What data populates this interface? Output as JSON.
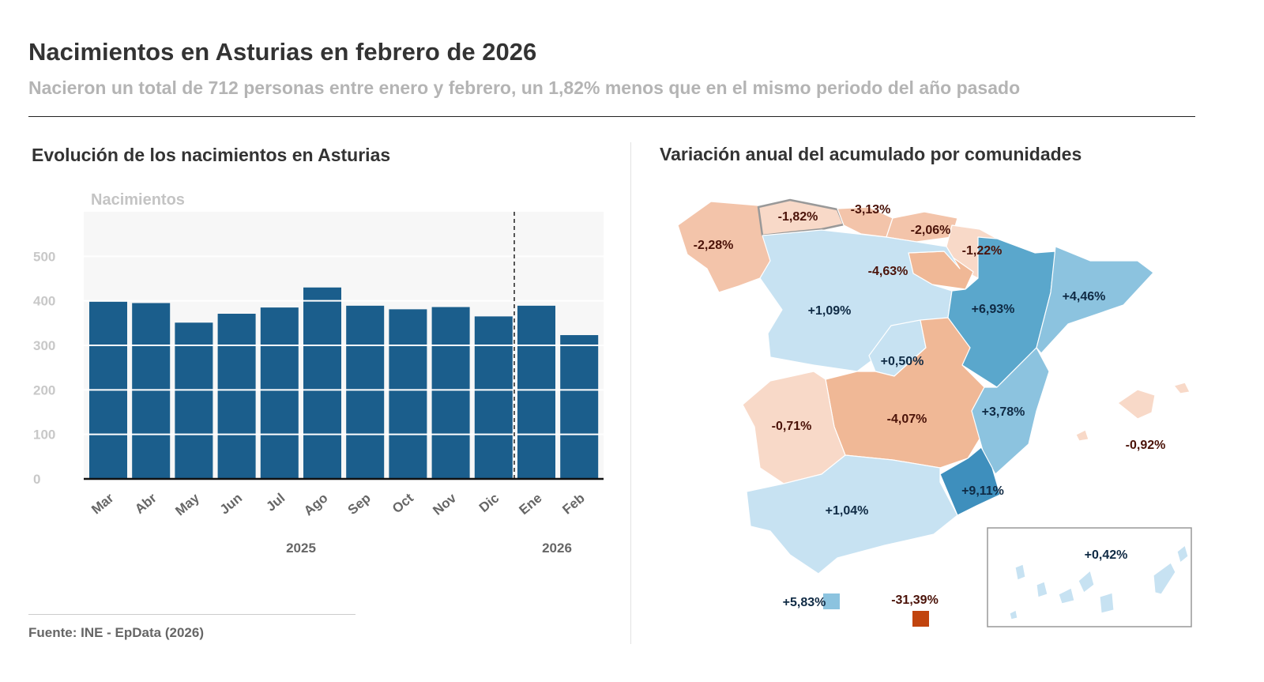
{
  "header": {
    "title": "Nacimientos en Asturias en febrero de 2026",
    "subtitle": "Nacieron un total de 712 personas entre enero y febrero, un 1,82% menos que en el mismo periodo del año pasado"
  },
  "chart_data": {
    "type": "bar",
    "title": "Evolución de los nacimientos en Asturias",
    "ylabel": "Nacimientos",
    "categories": [
      "Mar",
      "Abr",
      "May",
      "Jun",
      "Jul",
      "Ago",
      "Sep",
      "Oct",
      "Nov",
      "Dic",
      "Ene",
      "Feb"
    ],
    "values": [
      398,
      395,
      351,
      371,
      385,
      430,
      389,
      381,
      386,
      365,
      389,
      323
    ],
    "year_groups": [
      {
        "label": "2025"
      },
      {
        "label": "2026"
      }
    ],
    "yticks": [
      "0",
      "100",
      "200",
      "300",
      "400",
      "500"
    ],
    "ylim": [
      0,
      600
    ],
    "grid": true,
    "bar_color": "#1b5e8c",
    "divider_between": [
      "Dic",
      "Ene"
    ]
  },
  "map": {
    "title": "Variación anual del acumulado por comunidades",
    "colors": {
      "strong_neg": "#c1440e",
      "neg": "#f3c4aa",
      "slight_neg": "#f8d9c8",
      "slight_pos": "#c7e2f2",
      "pos": "#8cc3df",
      "strong_pos": "#5aa7cc",
      "max_pos": "#3e8fbd"
    },
    "regions": [
      {
        "id": "galicia",
        "value": "-2,28%",
        "color": "#f3c4aa"
      },
      {
        "id": "asturias",
        "value": "-1,82%",
        "color": "#f8d9c8"
      },
      {
        "id": "cantabria",
        "value": "-3,13%",
        "color": "#f3c4aa"
      },
      {
        "id": "pais-vasco",
        "value": "-2,06%",
        "color": "#f3c4aa"
      },
      {
        "id": "navarra",
        "value": "-1,22%",
        "color": "#f8d9c8"
      },
      {
        "id": "la-rioja",
        "value": "-4,63%",
        "color": "#f0b896"
      },
      {
        "id": "castilla-leon",
        "value": "+1,09%",
        "color": "#c7e2f2"
      },
      {
        "id": "aragon",
        "value": "+6,93%",
        "color": "#5aa7cc"
      },
      {
        "id": "cataluna",
        "value": "+4,46%",
        "color": "#8cc3df"
      },
      {
        "id": "madrid",
        "value": "+0,50%",
        "color": "#c7e2f2"
      },
      {
        "id": "castilla-la-mancha",
        "value": "-4,07%",
        "color": "#f0b896"
      },
      {
        "id": "valencia",
        "value": "+3,78%",
        "color": "#8cc3df"
      },
      {
        "id": "extremadura",
        "value": "-0,71%",
        "color": "#f8d9c8"
      },
      {
        "id": "murcia",
        "value": "+9,11%",
        "color": "#3e8fbd"
      },
      {
        "id": "andalucia",
        "value": "+1,04%",
        "color": "#c7e2f2"
      },
      {
        "id": "baleares",
        "value": "-0,92%",
        "color": "#f8d9c8"
      },
      {
        "id": "canarias",
        "value": "+0,42%",
        "color": "#c7e2f2"
      },
      {
        "id": "ceuta",
        "value": "+5,83%",
        "color": "#8cc3df"
      },
      {
        "id": "melilla",
        "value": "-31,39%",
        "color": "#c1440e"
      }
    ]
  },
  "footer": {
    "source": "Fuente: INE - EpData (2026)"
  }
}
